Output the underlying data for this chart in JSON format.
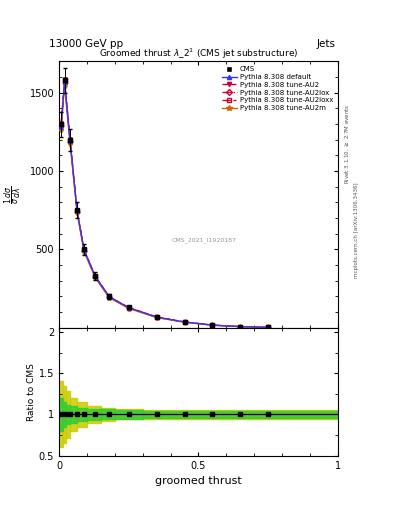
{
  "title_top": "13000 GeV pp",
  "title_right": "Jets",
  "plot_title": "Groomed thrust $\\lambda\\_2^1$ (CMS jet substructure)",
  "xlabel": "groomed thrust",
  "ylabel_ratio": "Ratio to CMS",
  "right_label_top": "Rivet 3.1.10, $\\geq$ 2.7M events",
  "right_label_bottom": "mcplots.cern.ch [arXiv:1306.3436]",
  "watermark": "CMS_2021_I1920187",
  "xlim": [
    0,
    1
  ],
  "ylim_main": [
    0,
    1700
  ],
  "ylim_ratio": [
    0.5,
    2.05
  ],
  "x_data": [
    0.008,
    0.02,
    0.04,
    0.065,
    0.09,
    0.13,
    0.18,
    0.25,
    0.35,
    0.45,
    0.55,
    0.65,
    0.75
  ],
  "cms_y": [
    1300,
    1580,
    1200,
    750,
    500,
    330,
    200,
    130,
    70,
    38,
    18,
    8,
    3
  ],
  "cms_yerr": [
    80,
    80,
    70,
    50,
    35,
    25,
    15,
    10,
    6,
    4,
    2,
    1,
    0.5
  ],
  "py_default_y": [
    1280,
    1570,
    1190,
    745,
    495,
    328,
    198,
    128,
    68,
    37,
    17,
    7.5,
    2.8
  ],
  "py_au2_y": [
    1310,
    1590,
    1205,
    752,
    500,
    332,
    200,
    130,
    70,
    38,
    18,
    8.0,
    3.0
  ],
  "py_au2lox_y": [
    1290,
    1565,
    1185,
    740,
    492,
    325,
    196,
    127,
    67,
    36,
    17,
    7.5,
    2.8
  ],
  "py_au2loxx_y": [
    1300,
    1580,
    1195,
    748,
    498,
    330,
    199,
    129,
    69,
    37.5,
    17.5,
    7.8,
    2.9
  ],
  "py_au2m_y": [
    1260,
    1545,
    1170,
    730,
    485,
    318,
    192,
    123,
    65,
    35,
    16,
    7.0,
    2.6
  ],
  "ratio_yellow_bins": [
    0.0,
    0.015,
    0.025,
    0.04,
    0.065,
    0.1,
    0.15,
    0.2,
    0.3,
    1.0
  ],
  "ratio_yellow_lo": [
    0.6,
    0.65,
    0.72,
    0.8,
    0.85,
    0.9,
    0.92,
    0.94,
    0.95,
    0.95
  ],
  "ratio_yellow_hi": [
    1.4,
    1.35,
    1.28,
    1.2,
    1.15,
    1.1,
    1.08,
    1.06,
    1.05,
    1.05
  ],
  "ratio_green_bins": [
    0.0,
    0.015,
    0.025,
    0.04,
    0.065,
    0.1,
    0.15,
    0.2,
    0.3,
    1.0
  ],
  "ratio_green_lo": [
    0.8,
    0.85,
    0.88,
    0.9,
    0.92,
    0.93,
    0.94,
    0.95,
    0.96,
    0.96
  ],
  "ratio_green_hi": [
    1.2,
    1.15,
    1.12,
    1.1,
    1.08,
    1.07,
    1.06,
    1.05,
    1.04,
    1.04
  ],
  "color_default": "#3333ff",
  "color_au2": "#cc0033",
  "color_au2lox": "#cc0033",
  "color_au2loxx": "#cc0033",
  "color_au2m": "#cc6600",
  "color_cms": "#000000",
  "color_green": "#33cc33",
  "color_yellow": "#cccc00",
  "yticks_main": [
    500,
    1000,
    1500
  ],
  "ytick_labels_main": [
    "500",
    "1000",
    "1500"
  ],
  "yticks_ratio": [
    0.5,
    1.0,
    1.5,
    2.0
  ],
  "ytick_labels_ratio": [
    "0.5",
    "1",
    "1.5",
    "2"
  ]
}
